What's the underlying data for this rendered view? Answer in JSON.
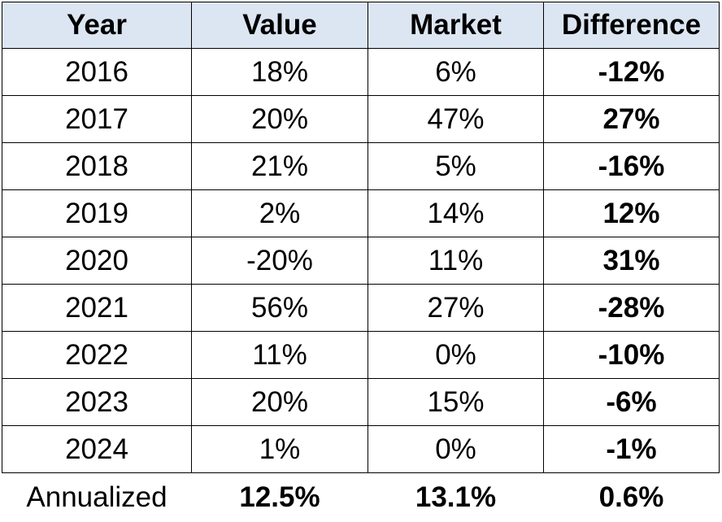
{
  "table": {
    "header": [
      "Year",
      "Value",
      "Market",
      "Difference"
    ],
    "rows": [
      [
        "2016",
        "18%",
        "6%",
        "-12%"
      ],
      [
        "2017",
        "20%",
        "47%",
        "27%"
      ],
      [
        "2018",
        "21%",
        "5%",
        "-16%"
      ],
      [
        "2019",
        "2%",
        "14%",
        "12%"
      ],
      [
        "2020",
        "-20%",
        "11%",
        "31%"
      ],
      [
        "2021",
        "56%",
        "27%",
        "-28%"
      ],
      [
        "2022",
        "11%",
        "0%",
        "-10%"
      ],
      [
        "2023",
        "20%",
        "15%",
        "-6%"
      ],
      [
        "2024",
        "1%",
        "0%",
        "-1%"
      ]
    ],
    "summary": [
      "Annualized",
      "12.5%",
      "13.1%",
      "0.6%"
    ]
  }
}
